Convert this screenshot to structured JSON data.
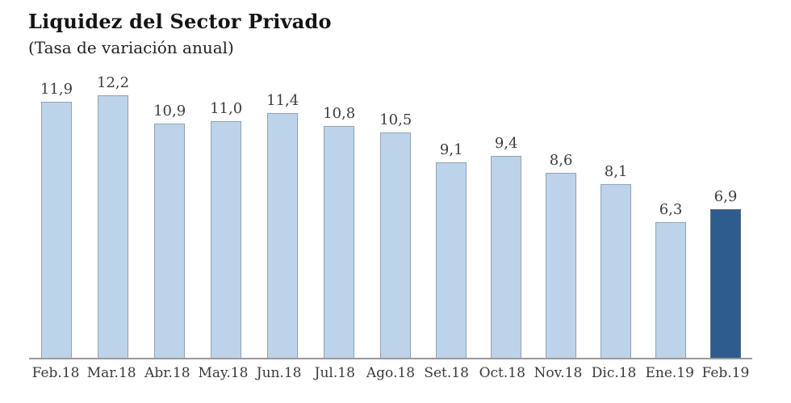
{
  "chart_data": {
    "type": "bar",
    "title": "Liquidez del Sector Privado",
    "subtitle": "(Tasa de variación anual)",
    "categories": [
      "Feb.18",
      "Mar.18",
      "Abr.18",
      "May.18",
      "Jun.18",
      "Jul.18",
      "Ago.18",
      "Set.18",
      "Oct.18",
      "Nov.18",
      "Dic.18",
      "Ene.19",
      "Feb.19"
    ],
    "values": [
      11.9,
      12.2,
      10.9,
      11.0,
      11.4,
      10.8,
      10.5,
      9.1,
      9.4,
      8.6,
      8.1,
      6.3,
      6.9
    ],
    "value_labels": [
      "11,9",
      "12,2",
      "10,9",
      "11,0",
      "11,4",
      "10,8",
      "10,5",
      "9,1",
      "9,4",
      "8,6",
      "8,1",
      "6,3",
      "6,9"
    ],
    "highlight_index": 12,
    "xlabel": "",
    "ylabel": "",
    "ylim": [
      0,
      12.2
    ],
    "grid": false,
    "legend": null,
    "colors": {
      "bar_fill": "#bdd3ea",
      "bar_border": "#8fa2b6",
      "highlight_fill": "#2e5c8f",
      "highlight_border": "#5c6b82",
      "axis_line": "#999999",
      "label_text": "#3d3d3d",
      "title_text": "#141414"
    }
  }
}
